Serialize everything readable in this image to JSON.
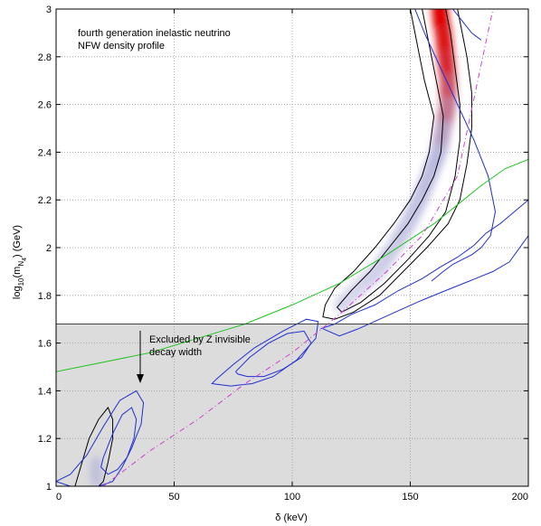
{
  "chart_data": {
    "type": "contour",
    "title": "",
    "annotations": {
      "model_line1": "fourth generation inelastic neutrino",
      "model_line2": "NFW density profile",
      "excluded_line1": "Excluded by Z invisible",
      "excluded_line2": "decay width"
    },
    "xlabel": "δ (keV)",
    "ylabel_main": "log",
    "ylabel_sub1": "10",
    "ylabel_mid": "(m",
    "ylabel_sub2": "N",
    "ylabel_sub3": "4",
    "ylabel_tail": ") (GeV)",
    "xlim": [
      0,
      200
    ],
    "ylim": [
      1,
      3
    ],
    "x_ticks": [
      0,
      50,
      100,
      150,
      200
    ],
    "x_tick_labels": [
      "0",
      "50",
      "100",
      "150",
      "200"
    ],
    "y_ticks": [
      1,
      1.2,
      1.4,
      1.6,
      1.8,
      2,
      2.2,
      2.4,
      2.6,
      2.8,
      3
    ],
    "y_tick_labels": [
      "1",
      "1.2",
      "1.4",
      "1.6",
      "1.8",
      "2",
      "2.2",
      "2.4",
      "2.6",
      "2.8",
      "3"
    ],
    "grid": true,
    "excluded_region": {
      "y_below": 1.68,
      "color": "#dcdcdc"
    },
    "colors": {
      "posterior_low": "#b4b4dc",
      "posterior_high": "#e00000",
      "black_contour": "#000000",
      "blue_contour": "#1f2fd0",
      "green_line": "#1fc41f",
      "magenta_line": "#d040d0"
    },
    "series": [
      {
        "kind": "posterior_ridge",
        "x": [
          162.5,
          163,
          164,
          165,
          166,
          166,
          164,
          162,
          158,
          154,
          149,
          143,
          136,
          128,
          121
        ],
        "y": [
          3.0,
          2.95,
          2.9,
          2.8,
          2.7,
          2.6,
          2.5,
          2.4,
          2.3,
          2.2,
          2.1,
          2.0,
          1.9,
          1.83,
          1.76
        ],
        "weight": [
          1.0,
          1.0,
          0.95,
          0.9,
          0.8,
          0.7,
          0.6,
          0.5,
          0.45,
          0.4,
          0.35,
          0.3,
          0.25,
          0.18,
          0.12
        ]
      },
      {
        "kind": "black_contour",
        "x": [
          150,
          152,
          154,
          156,
          160,
          158,
          155,
          150,
          143,
          135,
          126,
          118,
          114,
          113,
          118,
          126,
          137,
          147,
          157,
          166,
          171,
          174,
          176,
          176,
          174,
          172,
          170
        ],
        "y": [
          3.0,
          2.9,
          2.8,
          2.7,
          2.55,
          2.4,
          2.3,
          2.2,
          2.1,
          2.0,
          1.9,
          1.83,
          1.76,
          1.71,
          1.7,
          1.73,
          1.8,
          1.9,
          2.0,
          2.1,
          2.2,
          2.35,
          2.5,
          2.65,
          2.8,
          2.9,
          3.0
        ]
      },
      {
        "kind": "black_contour",
        "x": [
          155,
          157,
          159,
          161,
          164,
          163,
          160,
          155,
          149,
          141,
          133,
          125,
          119,
          121,
          129,
          139,
          149,
          158,
          165,
          169,
          171,
          171,
          169,
          167,
          165
        ],
        "y": [
          3.0,
          2.9,
          2.8,
          2.7,
          2.55,
          2.4,
          2.3,
          2.2,
          2.1,
          2.0,
          1.9,
          1.82,
          1.75,
          1.73,
          1.77,
          1.85,
          1.95,
          2.05,
          2.15,
          2.3,
          2.45,
          2.6,
          2.75,
          2.9,
          3.0
        ]
      },
      {
        "kind": "black_contour",
        "x": [
          8,
          11,
          14,
          18,
          22,
          24,
          24,
          22,
          20,
          18,
          14,
          10,
          8
        ],
        "y": [
          1.0,
          1.1,
          1.2,
          1.28,
          1.33,
          1.28,
          1.2,
          1.1,
          1.02,
          1.0,
          1.0,
          1.0,
          1.0
        ]
      },
      {
        "kind": "blue_contour",
        "x": [
          112,
          118,
          125,
          135,
          145,
          155,
          163,
          170,
          177,
          182,
          188,
          200
        ],
        "y": [
          1.66,
          1.68,
          1.72,
          1.76,
          1.82,
          1.87,
          1.92,
          1.96,
          2.01,
          2.06,
          2.1,
          2.2
        ]
      },
      {
        "kind": "blue_contour",
        "x": [
          113,
          120,
          128,
          137,
          146,
          155,
          165,
          175,
          185,
          192,
          200
        ],
        "y": [
          1.66,
          1.63,
          1.66,
          1.7,
          1.74,
          1.78,
          1.82,
          1.86,
          1.9,
          1.94,
          2.05
        ]
      },
      {
        "kind": "blue_contour",
        "x": [
          152,
          156,
          163,
          170,
          177,
          183,
          186,
          184,
          180,
          176,
          172,
          168,
          164,
          159
        ],
        "y": [
          3.0,
          2.9,
          2.75,
          2.6,
          2.45,
          2.3,
          2.15,
          2.05,
          2.0,
          1.97,
          1.95,
          1.93,
          1.9,
          1.86
        ]
      },
      {
        "kind": "blue_contour",
        "x": [
          168,
          172,
          176,
          180
        ],
        "y": [
          3.0,
          2.95,
          2.9,
          2.87
        ]
      },
      {
        "kind": "blue_contour",
        "x": [
          68,
          75,
          84,
          96,
          106,
          111,
          110,
          102,
          92,
          83,
          74,
          66,
          68
        ],
        "y": [
          1.45,
          1.51,
          1.58,
          1.65,
          1.7,
          1.69,
          1.62,
          1.53,
          1.46,
          1.43,
          1.42,
          1.43,
          1.45
        ]
      },
      {
        "kind": "blue_contour",
        "x": [
          76,
          82,
          90,
          98,
          105,
          108,
          104,
          96,
          88,
          81,
          77,
          76
        ],
        "y": [
          1.48,
          1.54,
          1.6,
          1.64,
          1.65,
          1.6,
          1.54,
          1.49,
          1.46,
          1.46,
          1.47,
          1.48
        ]
      },
      {
        "kind": "blue_contour",
        "x": [
          0,
          6,
          13,
          20,
          27,
          34,
          37,
          36,
          32,
          28,
          24,
          18,
          12,
          6,
          0
        ],
        "y": [
          1.02,
          1.05,
          1.13,
          1.25,
          1.36,
          1.4,
          1.35,
          1.26,
          1.16,
          1.08,
          1.02,
          1.0,
          1.0,
          1.0,
          1.02
        ]
      },
      {
        "kind": "blue_contour",
        "x": [
          20,
          24,
          28,
          32,
          34,
          33,
          30,
          26,
          22,
          19,
          20
        ],
        "y": [
          1.12,
          1.22,
          1.3,
          1.33,
          1.28,
          1.2,
          1.12,
          1.07,
          1.05,
          1.08,
          1.12
        ]
      },
      {
        "kind": "green_line",
        "x": [
          0,
          20,
          40,
          60,
          80,
          100,
          120,
          140,
          160,
          180,
          190,
          200
        ],
        "y": [
          1.48,
          1.52,
          1.56,
          1.62,
          1.68,
          1.76,
          1.85,
          1.97,
          2.1,
          2.26,
          2.33,
          2.37
        ]
      },
      {
        "kind": "magenta_dashdot",
        "x": [
          20,
          40,
          60,
          80,
          100,
          120,
          140,
          155,
          170,
          185
        ],
        "y": [
          1.0,
          1.15,
          1.28,
          1.43,
          1.56,
          1.72,
          1.9,
          2.05,
          2.3,
          3.0
        ]
      }
    ]
  }
}
